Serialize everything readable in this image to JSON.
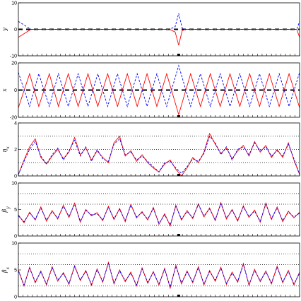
{
  "chart_data": [
    {
      "type": "line",
      "ylabel": "y",
      "ylim": [
        -10,
        10
      ],
      "yticks": [
        -10,
        0,
        10
      ],
      "reference_lines": [
        0
      ],
      "x": [
        0,
        18,
        30,
        150,
        200,
        215,
        223,
        228,
        233,
        238,
        245,
        260,
        300,
        380,
        396,
        400
      ],
      "series": [
        {
          "color": "#ff0000",
          "style": "solid",
          "values": [
            -3,
            0,
            0,
            0,
            0,
            0,
            -1,
            -6,
            -0.5,
            0,
            0,
            0,
            0,
            0,
            0,
            -3
          ]
        },
        {
          "color": "#0000ff",
          "style": "dashed",
          "values": [
            3,
            0,
            0,
            0,
            0,
            0,
            1,
            6,
            0.5,
            0,
            0,
            0,
            0,
            0,
            0,
            3
          ]
        }
      ]
    },
    {
      "type": "line",
      "ylabel": "x",
      "ylim": [
        -20,
        20
      ],
      "yticks": [
        -20,
        0,
        20
      ],
      "reference_lines": [
        0
      ],
      "x": [
        0,
        16,
        29,
        44,
        57,
        71,
        85,
        99,
        113,
        127,
        141,
        155,
        169,
        183,
        197,
        211,
        228,
        245,
        259,
        273,
        287,
        301,
        315,
        329,
        343,
        357,
        371,
        385,
        400
      ],
      "series": [
        {
          "color": "#ff0000",
          "style": "solid",
          "values": [
            -13,
            12,
            -12,
            12,
            -12,
            12,
            -12,
            12,
            -12,
            12,
            -12,
            12,
            -12,
            12,
            -12,
            12,
            -18,
            12,
            -12,
            12,
            -12,
            12,
            -12,
            12,
            -12,
            12,
            -12,
            12,
            -13
          ]
        },
        {
          "color": "#0000ff",
          "style": "dashed",
          "values": [
            13,
            -12,
            12,
            -12,
            12,
            -12,
            12,
            -12,
            12,
            -12,
            12,
            -12,
            12,
            -12,
            12,
            -12,
            18,
            -12,
            12,
            -12,
            12,
            -12,
            12,
            -12,
            12,
            -12,
            12,
            -12,
            13
          ]
        }
      ]
    },
    {
      "type": "line",
      "ylabel": "η_x",
      "ylim": [
        0,
        4
      ],
      "yticks": [
        0,
        2,
        4
      ],
      "reference_lines": [
        1,
        2,
        3
      ],
      "x": [
        0,
        8,
        16,
        24,
        32,
        40,
        48,
        56,
        64,
        72,
        80,
        88,
        96,
        104,
        112,
        120,
        128,
        136,
        144,
        152,
        160,
        168,
        176,
        184,
        192,
        200,
        208,
        216,
        224,
        232,
        240,
        248,
        256,
        264,
        272,
        280,
        288,
        296,
        304,
        312,
        320,
        328,
        336,
        344,
        352,
        360,
        368,
        376,
        384,
        392,
        400
      ],
      "series": [
        {
          "color": "#ff0000",
          "style": "solid",
          "values": [
            0.1,
            1.2,
            2.2,
            2.8,
            1.4,
            0.9,
            1.5,
            2.0,
            1.3,
            1.8,
            2.9,
            1.6,
            2.1,
            1.2,
            1.9,
            1.4,
            1.0,
            2.5,
            3.0,
            1.5,
            1.9,
            1.1,
            1.6,
            1.0,
            0.6,
            0.3,
            0.9,
            1.2,
            0.5,
            0.0,
            0.6,
            1.4,
            1.0,
            1.8,
            3.2,
            2.4,
            1.7,
            2.1,
            1.3,
            1.9,
            2.3,
            1.5,
            2.6,
            1.8,
            2.3,
            1.4,
            2.0,
            1.4,
            2.5,
            1.2,
            0.1
          ]
        },
        {
          "color": "#0000ff",
          "style": "dashed",
          "values": [
            0.1,
            1.1,
            2.0,
            2.6,
            1.5,
            0.9,
            1.6,
            2.1,
            1.2,
            1.9,
            2.7,
            1.5,
            2.2,
            1.1,
            2.0,
            1.3,
            1.1,
            2.4,
            2.8,
            1.6,
            1.8,
            1.2,
            1.5,
            1.1,
            0.7,
            0.3,
            1.0,
            1.1,
            0.6,
            0.2,
            0.7,
            1.3,
            1.1,
            1.7,
            3.0,
            2.5,
            1.6,
            2.2,
            1.2,
            2.0,
            2.2,
            1.6,
            2.5,
            1.9,
            2.2,
            1.5,
            1.9,
            1.5,
            2.4,
            1.3,
            0.1
          ]
        }
      ]
    },
    {
      "type": "line",
      "ylabel": "β_y",
      "ylim": [
        0,
        10
      ],
      "yticks": [
        0,
        5,
        10
      ],
      "reference_lines": [
        2,
        6,
        8
      ],
      "x": [
        0,
        8,
        16,
        24,
        32,
        40,
        48,
        56,
        64,
        72,
        80,
        88,
        96,
        104,
        112,
        120,
        128,
        136,
        144,
        152,
        160,
        168,
        176,
        184,
        192,
        200,
        208,
        216,
        224,
        232,
        240,
        248,
        256,
        264,
        272,
        280,
        288,
        296,
        304,
        312,
        320,
        328,
        336,
        344,
        352,
        360,
        368,
        376,
        384,
        392,
        400
      ],
      "series": [
        {
          "color": "#ff0000",
          "style": "solid",
          "values": [
            4.0,
            2.5,
            4.5,
            3.0,
            5.5,
            2.8,
            4.8,
            3.2,
            5.8,
            3.5,
            6.2,
            2.6,
            5.0,
            3.8,
            4.4,
            2.9,
            5.6,
            3.1,
            5.2,
            2.7,
            6.0,
            3.4,
            4.6,
            3.0,
            5.4,
            2.2,
            4.2,
            1.9,
            5.8,
            3.0,
            4.8,
            3.3,
            6.1,
            3.6,
            5.3,
            2.9,
            6.3,
            3.2,
            5.0,
            2.8,
            5.7,
            3.5,
            4.9,
            2.6,
            6.2,
            3.1,
            5.5,
            2.7,
            4.7,
            3.4,
            4.5
          ]
        },
        {
          "color": "#0000ff",
          "style": "dashed",
          "values": [
            3.8,
            2.7,
            4.3,
            3.2,
            5.3,
            3.0,
            4.6,
            3.4,
            5.6,
            3.7,
            6.0,
            2.8,
            4.8,
            4.0,
            4.2,
            3.1,
            5.4,
            3.3,
            5.0,
            2.9,
            5.8,
            3.6,
            4.4,
            3.2,
            5.2,
            2.4,
            4.0,
            2.1,
            5.6,
            3.2,
            4.6,
            3.5,
            5.9,
            3.8,
            5.1,
            3.1,
            6.1,
            3.4,
            4.8,
            3.0,
            5.5,
            3.7,
            4.7,
            2.8,
            6.0,
            3.3,
            5.3,
            2.9,
            4.5,
            3.6,
            4.3
          ]
        }
      ]
    },
    {
      "type": "line",
      "ylabel": "β_x",
      "ylim": [
        0,
        10
      ],
      "yticks": [
        0,
        5,
        10
      ],
      "reference_lines": [
        2,
        6,
        8
      ],
      "x": [
        0,
        8,
        16,
        24,
        32,
        40,
        48,
        56,
        64,
        72,
        80,
        88,
        96,
        104,
        112,
        120,
        128,
        136,
        144,
        152,
        160,
        168,
        176,
        184,
        192,
        200,
        208,
        216,
        224,
        232,
        240,
        248,
        256,
        264,
        272,
        280,
        288,
        296,
        304,
        312,
        320,
        328,
        336,
        344,
        352,
        360,
        368,
        376,
        384,
        392,
        400
      ],
      "series": [
        {
          "color": "#ff0000",
          "style": "solid",
          "values": [
            5.0,
            2.0,
            5.5,
            2.6,
            4.8,
            2.2,
            5.6,
            2.9,
            4.5,
            2.3,
            5.8,
            3.0,
            4.9,
            2.1,
            5.2,
            2.7,
            6.4,
            2.4,
            5.0,
            2.8,
            4.6,
            2.0,
            5.4,
            2.5,
            4.7,
            2.2,
            5.3,
            1.6,
            5.9,
            2.4,
            4.8,
            2.6,
            5.6,
            2.2,
            4.9,
            2.9,
            5.5,
            2.3,
            4.6,
            2.7,
            6.2,
            2.1,
            5.1,
            2.8,
            4.8,
            2.4,
            5.7,
            2.6,
            4.9,
            2.2,
            4.6
          ]
        },
        {
          "color": "#0000ff",
          "style": "dashed",
          "values": [
            4.8,
            2.2,
            5.3,
            2.8,
            4.6,
            2.4,
            5.4,
            3.1,
            4.3,
            2.5,
            5.6,
            3.2,
            4.7,
            2.3,
            5.0,
            2.9,
            6.2,
            2.6,
            4.8,
            3.0,
            4.4,
            2.2,
            5.2,
            2.7,
            4.5,
            2.4,
            5.1,
            1.8,
            5.7,
            2.6,
            4.6,
            2.8,
            5.4,
            2.4,
            4.7,
            3.1,
            5.3,
            2.5,
            4.4,
            2.9,
            6.0,
            2.3,
            4.9,
            3.0,
            4.6,
            2.6,
            5.5,
            2.8,
            4.7,
            2.4,
            4.4
          ]
        }
      ]
    }
  ]
}
